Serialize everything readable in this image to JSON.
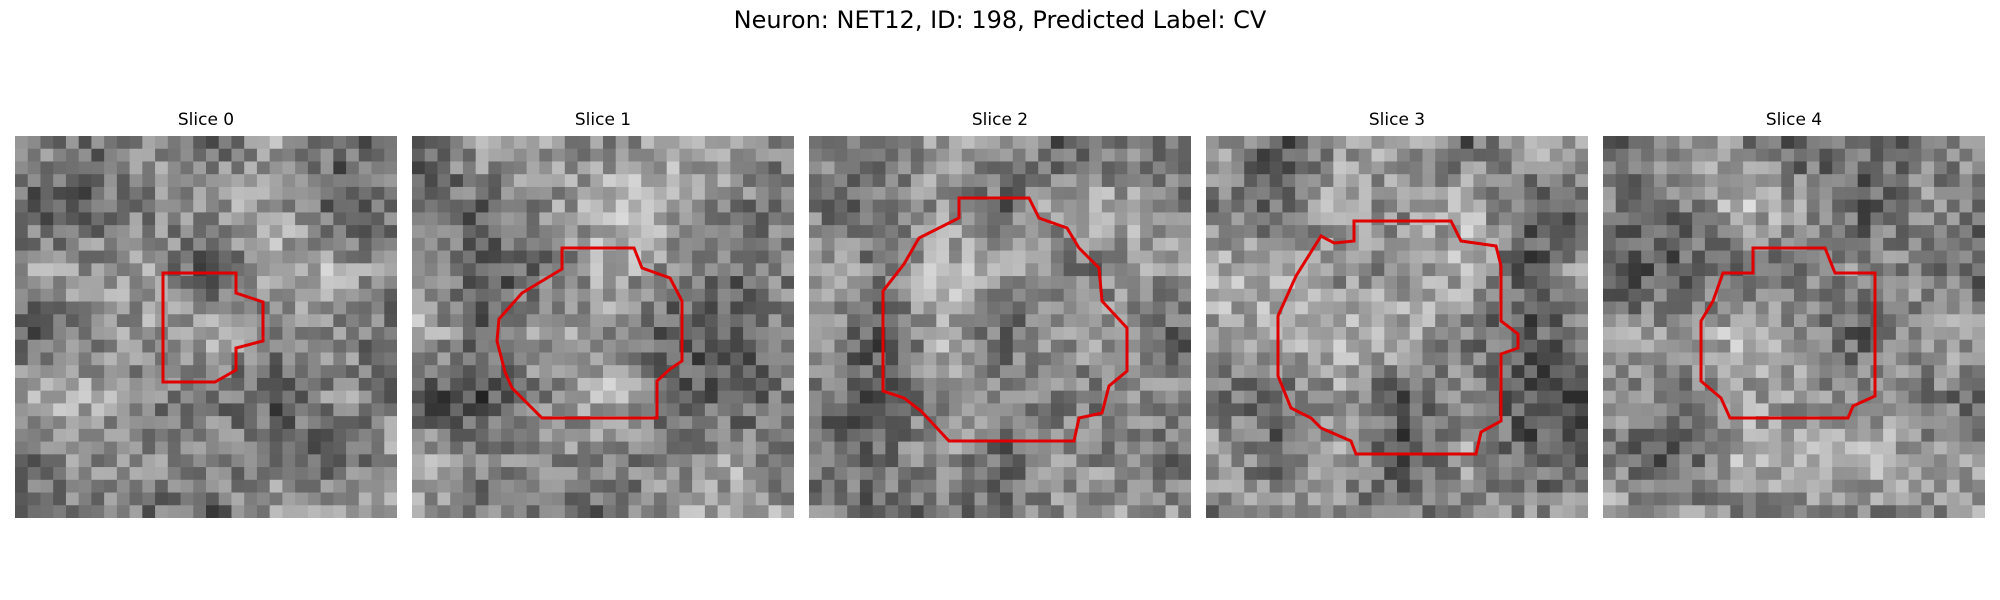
{
  "figure": {
    "title": "Neuron: NET12, ID: 198, Predicted Label: CV",
    "contour_color": "#e00000",
    "slices": [
      {
        "label": "Slice 0"
      },
      {
        "label": "Slice 1"
      },
      {
        "label": "Slice 2"
      },
      {
        "label": "Slice 3"
      },
      {
        "label": "Slice 4"
      }
    ]
  }
}
